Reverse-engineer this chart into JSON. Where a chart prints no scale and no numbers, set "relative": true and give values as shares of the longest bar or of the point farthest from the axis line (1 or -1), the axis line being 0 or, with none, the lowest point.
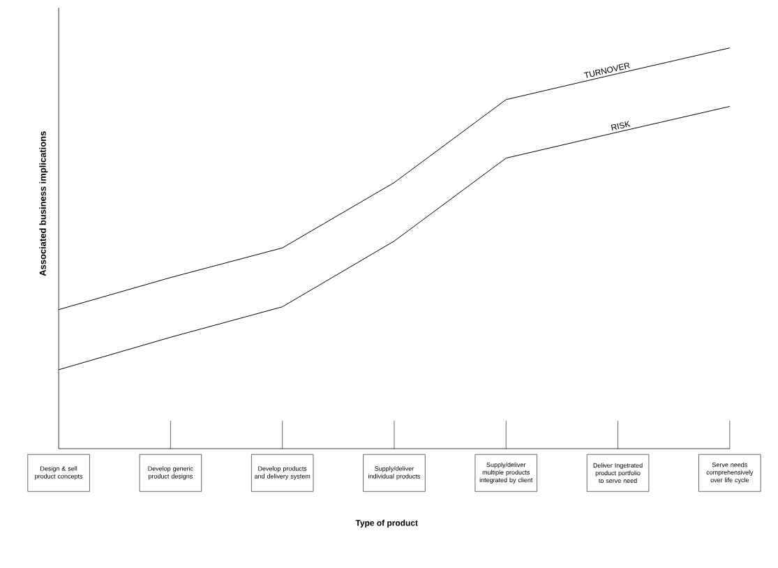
{
  "chart_data": {
    "type": "line",
    "xlabel": "Type of product",
    "ylabel": "Associated business implications",
    "relative": true,
    "legend": false,
    "marker": "none",
    "categories": [
      "Design & sell product concepts",
      "Develop generic product designs",
      "Develop products and delivery system",
      "Supply/deliver individual products",
      "Supply/deliver multiple products integrated by client",
      "Deliver Ingetrated product portfolio to serve need",
      "Serve needs comprehensively over life cycle"
    ],
    "series": [
      {
        "name": "TURNOVER",
        "color": "#000000",
        "values": [
          0.347,
          0.427,
          0.501,
          0.664,
          0.871,
          0.936,
          1
        ]
      },
      {
        "name": "RISK",
        "color": "#000000",
        "values": [
          0.197,
          0.278,
          0.354,
          0.518,
          0.725,
          0.79,
          0.854
        ]
      }
    ]
  }
}
